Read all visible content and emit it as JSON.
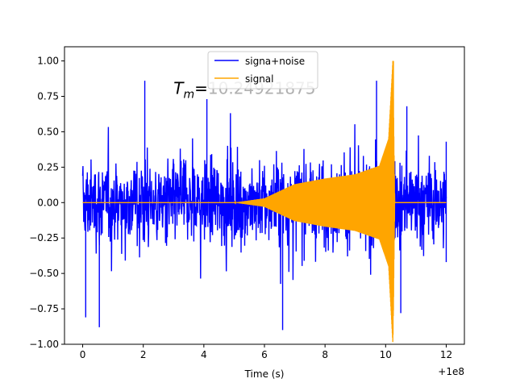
{
  "chart_data": {
    "type": "line",
    "title": "",
    "xlabel": "Time (s)",
    "ylabel": "",
    "x_offset_label": "+1e8",
    "xlim": [
      -0.6,
      12.6
    ],
    "ylim": [
      -1.0,
      1.1
    ],
    "x_ticks": [
      0,
      2,
      4,
      6,
      8,
      10,
      12
    ],
    "x_tick_labels": [
      "0",
      "2",
      "4",
      "6",
      "8",
      "10",
      "12"
    ],
    "y_ticks": [
      -1.0,
      -0.75,
      -0.5,
      -0.25,
      0.0,
      0.25,
      0.5,
      0.75,
      1.0
    ],
    "y_tick_labels": [
      "−1.00",
      "−0.75",
      "−0.50",
      "−0.25",
      "0.00",
      "0.25",
      "0.50",
      "0.75",
      "1.00"
    ],
    "grid": false,
    "legend_position": "top-center",
    "series": [
      {
        "name": "signa+noise",
        "color": "#0000ff",
        "x_range": [
          0,
          12
        ],
        "noise_amplitude_typical": 0.55,
        "max": 0.85,
        "min": -0.9
      },
      {
        "name": "signal",
        "color": "#ffa500",
        "x_range": [
          0,
          12
        ],
        "envelope": [
          {
            "x": 0,
            "amp": 0.0
          },
          {
            "x": 5,
            "amp": 0.0
          },
          {
            "x": 6,
            "amp": 0.03
          },
          {
            "x": 7,
            "amp": 0.13
          },
          {
            "x": 8,
            "amp": 0.17
          },
          {
            "x": 9,
            "amp": 0.2
          },
          {
            "x": 9.8,
            "amp": 0.26
          },
          {
            "x": 10.1,
            "amp": 0.45
          },
          {
            "x": 10.24,
            "amp": 1.0
          },
          {
            "x": 10.3,
            "amp": 0.0
          },
          {
            "x": 12,
            "amp": 0.0
          }
        ],
        "peak_max": 1.0,
        "peak_min": -0.76,
        "peak_time": 10.24921875
      }
    ],
    "annotation": {
      "prefix": "T",
      "subscript": "m",
      "equals": "=",
      "value": "10.24921875",
      "x": 3.0,
      "y": 0.8
    }
  }
}
